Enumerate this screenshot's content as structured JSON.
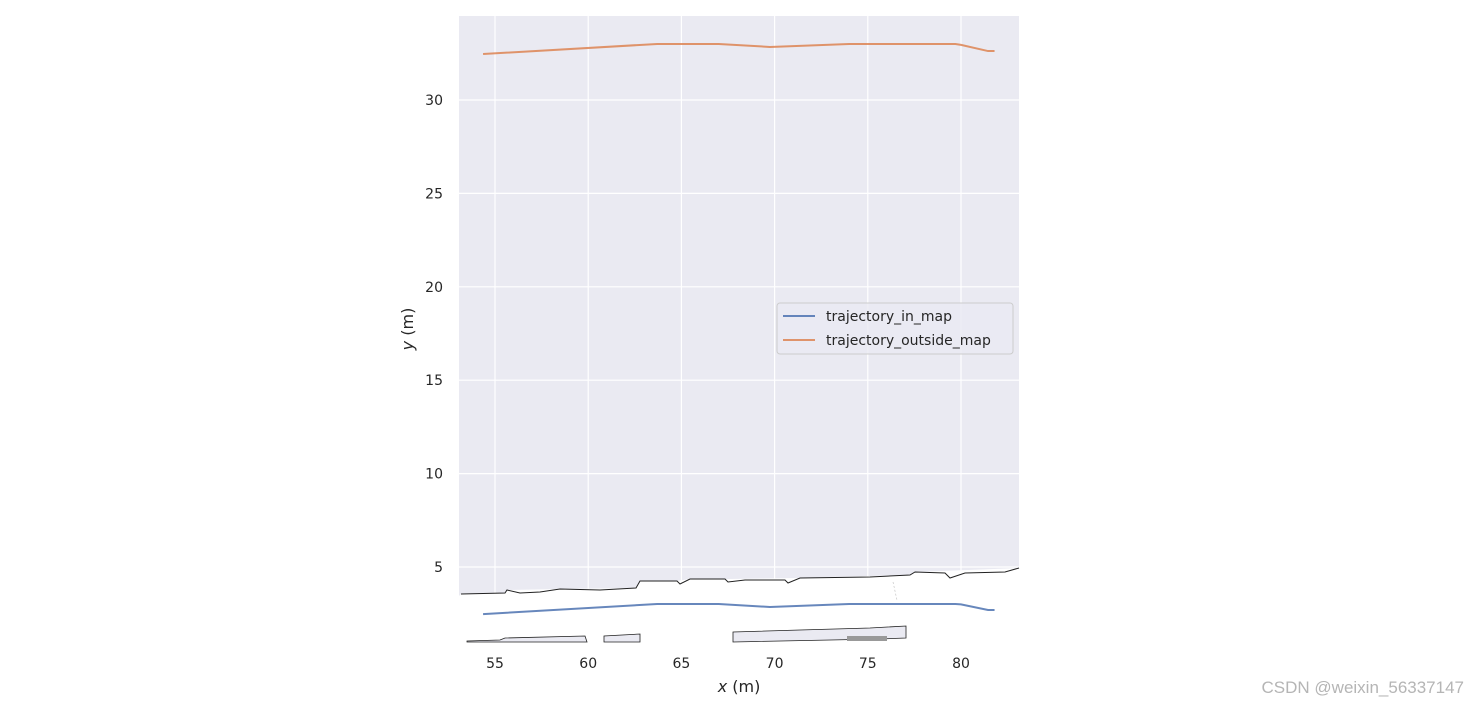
{
  "chart_data": {
    "type": "line",
    "title": "",
    "xlabel": "x (m)",
    "ylabel": "y (m)",
    "xlim": [
      53.1,
      83.1
    ],
    "ylim": [
      1.1,
      34.5
    ],
    "xticks": [
      55,
      60,
      65,
      70,
      75,
      80
    ],
    "yticks": [
      5,
      10,
      15,
      20,
      25,
      30
    ],
    "grid": true,
    "legend_position": "center right",
    "series": [
      {
        "name": "trajectory_in_map",
        "color": "#4c72b0",
        "x": [
          54.36,
          63.7,
          67.0,
          69.75,
          74.0,
          79.7,
          80.0,
          81.45,
          81.8
        ],
        "y": [
          2.48,
          3.02,
          3.02,
          2.86,
          3.02,
          3.02,
          3.0,
          2.7,
          2.7
        ]
      },
      {
        "name": "trajectory_outside_map",
        "color": "#dd8452",
        "x": [
          54.36,
          63.7,
          67.0,
          69.75,
          74.0,
          79.7,
          80.0,
          81.45,
          81.8
        ],
        "y": [
          32.46,
          33.0,
          33.0,
          32.84,
          33.0,
          33.0,
          32.95,
          32.62,
          32.62
        ]
      }
    ],
    "annotations": [
      "map background image (road boundaries) overlaid near y=1.2-4.9"
    ]
  },
  "watermark": "CSDN @weixin_56337147",
  "colors": {
    "axes_bg": "#eaeaf2",
    "grid": "#ffffff",
    "text": "#262626"
  }
}
